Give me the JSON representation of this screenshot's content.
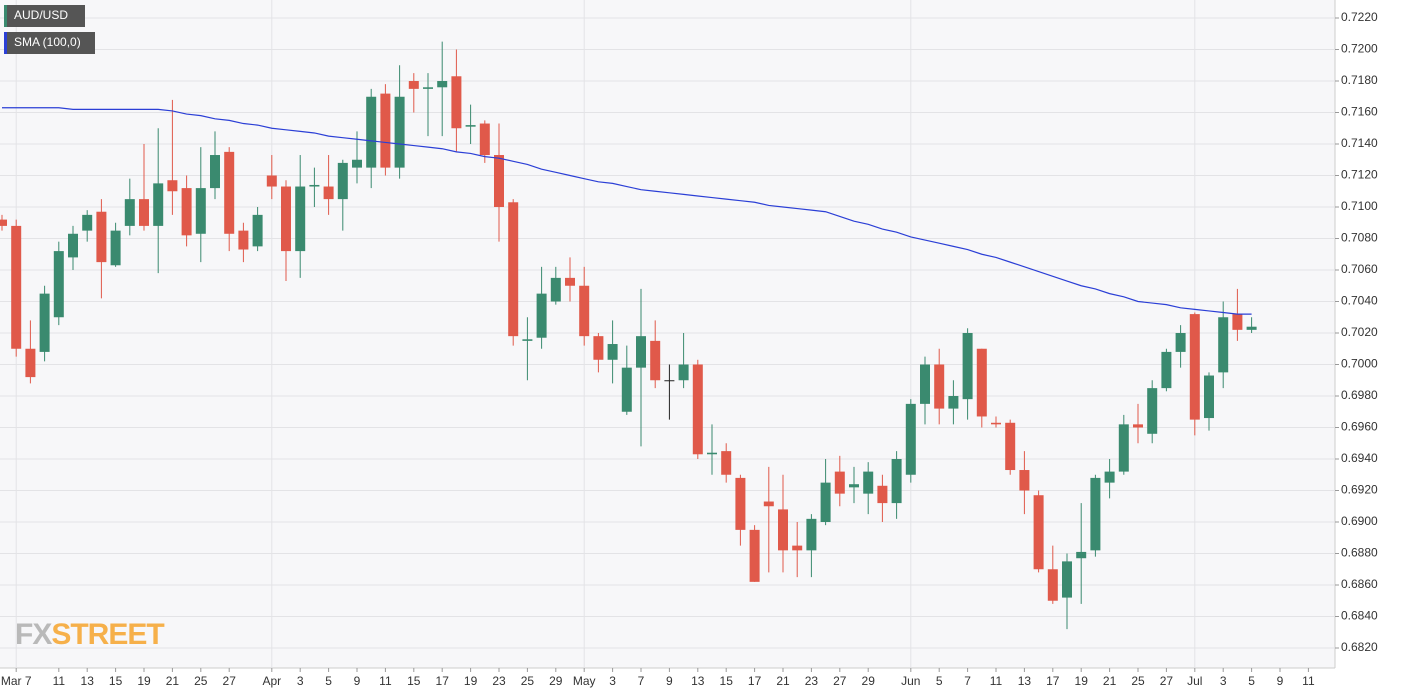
{
  "chart_data": {
    "type": "candlestick",
    "categories": [
      null,
      "Mar 7",
      null,
      null,
      "11",
      null,
      "13",
      null,
      "15",
      null,
      "19",
      null,
      "21",
      null,
      "25",
      null,
      "27",
      null,
      null,
      "Apr",
      null,
      "3",
      null,
      "5",
      null,
      "9",
      null,
      "11",
      null,
      "15",
      null,
      "17",
      null,
      "19",
      null,
      "23",
      null,
      "25",
      null,
      "29",
      null,
      "May",
      null,
      "3",
      null,
      "7",
      null,
      "9",
      null,
      "13",
      null,
      "15",
      null,
      "17",
      null,
      "21",
      null,
      "23",
      null,
      "27",
      null,
      "29",
      null,
      null,
      "Jun",
      null,
      "5",
      null,
      "7",
      null,
      "11",
      null,
      "13",
      null,
      "17",
      null,
      "19",
      null,
      "21",
      null,
      "25",
      null,
      "27",
      null,
      "Jul",
      null,
      "3",
      null,
      "5",
      null,
      "9",
      null,
      "11",
      null
    ],
    "series": [
      {
        "name": "AUD/USD",
        "type": "candlestick",
        "up_color": "#3a8a6f",
        "down_color": "#e0594a",
        "neutral_color": "#222222",
        "open": [
          0.7092,
          0.7088,
          0.701,
          0.7008,
          0.703,
          0.7068,
          0.7085,
          0.7097,
          0.7063,
          0.7088,
          0.7105,
          0.7088,
          0.7117,
          0.7112,
          0.7083,
          0.7112,
          0.7135,
          0.7085,
          0.7075,
          0.712,
          0.7113,
          0.7072,
          0.7113,
          0.7113,
          0.7105,
          0.7125,
          0.7125,
          0.7172,
          0.7125,
          0.718,
          0.7175,
          0.7176,
          0.7183,
          0.7151,
          0.7153,
          0.7133,
          0.7103,
          0.7015,
          0.7017,
          0.704,
          0.7055,
          0.705,
          0.7018,
          0.7003,
          0.697,
          0.6998,
          0.7015,
          0.699,
          0.699,
          0.7,
          0.6943,
          0.6945,
          0.6928,
          0.6895,
          0.6913,
          0.6908,
          0.6885,
          0.6882,
          0.69,
          0.6932,
          0.6922,
          0.6918,
          0.6923,
          0.6912,
          0.693,
          0.6975,
          0.7,
          0.6972,
          0.6978,
          0.701,
          0.6963,
          0.6963,
          0.6933,
          0.6917,
          0.687,
          0.6852,
          0.6877,
          0.6882,
          0.6925,
          0.6932,
          0.6962,
          0.6956,
          0.6985,
          0.7008,
          0.7032,
          0.6966,
          0.6995,
          0.7032,
          0.7022,
          null,
          null,
          null,
          null,
          null
        ],
        "high": [
          0.7095,
          0.7092,
          0.7028,
          0.705,
          0.7078,
          0.7088,
          0.7098,
          0.7105,
          0.709,
          0.7118,
          0.714,
          0.715,
          0.7168,
          0.712,
          0.7138,
          0.7148,
          0.7138,
          0.709,
          0.71,
          0.7133,
          0.7117,
          0.7133,
          0.7125,
          0.7133,
          0.713,
          0.7148,
          0.7175,
          0.7178,
          0.719,
          0.7185,
          0.7185,
          0.7205,
          0.72,
          0.7165,
          0.7155,
          0.7153,
          0.7105,
          0.703,
          0.7062,
          0.7062,
          0.7068,
          0.7062,
          0.702,
          0.7028,
          0.7012,
          0.7048,
          0.7028,
          0.7,
          0.702,
          0.7003,
          0.6962,
          0.695,
          0.693,
          0.6898,
          0.6935,
          0.693,
          0.69,
          0.6905,
          0.694,
          0.6942,
          0.6935,
          0.6938,
          0.693,
          0.6945,
          0.6978,
          0.7005,
          0.701,
          0.699,
          0.7023,
          0.701,
          0.6967,
          0.6965,
          0.6945,
          0.692,
          0.6885,
          0.688,
          0.6912,
          0.693,
          0.694,
          0.6968,
          0.6975,
          0.699,
          0.701,
          0.7025,
          0.7033,
          0.6995,
          0.704,
          0.7048,
          0.703,
          null,
          null,
          null,
          null,
          null
        ],
        "low": [
          0.7085,
          0.7005,
          0.6988,
          0.7002,
          0.7025,
          0.706,
          0.7078,
          0.7042,
          0.7062,
          0.7082,
          0.7085,
          0.7058,
          0.7095,
          0.7075,
          0.7065,
          0.7105,
          0.7072,
          0.7065,
          0.7072,
          0.7105,
          0.7053,
          0.7055,
          0.71,
          0.7095,
          0.7085,
          0.7115,
          0.7112,
          0.712,
          0.7118,
          0.716,
          0.7145,
          0.7145,
          0.7135,
          0.714,
          0.7128,
          0.7078,
          0.7012,
          0.699,
          0.701,
          0.7038,
          0.704,
          0.7012,
          0.6995,
          0.6988,
          0.6968,
          0.6948,
          0.6985,
          0.6965,
          0.6985,
          0.694,
          0.693,
          0.6925,
          0.6885,
          0.6862,
          0.6868,
          0.6868,
          0.6865,
          0.6865,
          0.6898,
          0.691,
          0.6912,
          0.6905,
          0.69,
          0.6902,
          0.6925,
          0.6962,
          0.6962,
          0.6962,
          0.6965,
          0.696,
          0.696,
          0.693,
          0.6905,
          0.6868,
          0.6848,
          0.6832,
          0.6848,
          0.6878,
          0.6915,
          0.693,
          0.695,
          0.695,
          0.6983,
          0.6998,
          0.6955,
          0.6958,
          0.6985,
          0.7015,
          0.702,
          null,
          null,
          null,
          null,
          null
        ],
        "close": [
          0.7088,
          0.701,
          0.6992,
          0.7045,
          0.7072,
          0.7083,
          0.7095,
          0.7065,
          0.7085,
          0.7105,
          0.7088,
          0.7115,
          0.711,
          0.7082,
          0.7112,
          0.7133,
          0.7083,
          0.7073,
          0.7095,
          0.7113,
          0.7072,
          0.7113,
          0.7114,
          0.7105,
          0.7128,
          0.713,
          0.717,
          0.7125,
          0.717,
          0.7175,
          0.7176,
          0.718,
          0.715,
          0.7152,
          0.7133,
          0.71,
          0.7018,
          0.7016,
          0.7045,
          0.7055,
          0.705,
          0.7018,
          0.7003,
          0.7013,
          0.6998,
          0.7018,
          0.699,
          0.699,
          0.7,
          0.6943,
          0.6944,
          0.693,
          0.6895,
          0.6862,
          0.691,
          0.6882,
          0.6882,
          0.6902,
          0.6925,
          0.6918,
          0.6924,
          0.6932,
          0.6912,
          0.694,
          0.6975,
          0.7,
          0.6972,
          0.698,
          0.702,
          0.6967,
          0.6962,
          0.6933,
          0.692,
          0.687,
          0.685,
          0.6875,
          0.6881,
          0.6928,
          0.6932,
          0.6962,
          0.696,
          0.6985,
          0.7008,
          0.702,
          0.6965,
          0.6993,
          0.703,
          0.7022,
          0.7024,
          null,
          null,
          null,
          null,
          null
        ]
      },
      {
        "name": "SMA (100,0)",
        "type": "line",
        "color": "#2b3fd6",
        "values": [
          0.7163,
          0.7163,
          0.7163,
          0.7163,
          0.7163,
          0.7162,
          0.7162,
          0.7162,
          0.7162,
          0.7162,
          0.7162,
          0.7162,
          0.7161,
          0.7159,
          0.7158,
          0.7156,
          0.7155,
          0.7153,
          0.7152,
          0.715,
          0.7149,
          0.7148,
          0.7147,
          0.7145,
          0.7144,
          0.7143,
          0.7142,
          0.7141,
          0.714,
          0.7139,
          0.7138,
          0.7137,
          0.7135,
          0.7134,
          0.7132,
          0.7131,
          0.7129,
          0.7127,
          0.7124,
          0.7122,
          0.712,
          0.7118,
          0.7116,
          0.7115,
          0.7113,
          0.7111,
          0.711,
          0.7109,
          0.7108,
          0.7107,
          0.7106,
          0.7105,
          0.7104,
          0.7103,
          0.7101,
          0.71,
          0.7099,
          0.7098,
          0.7097,
          0.7094,
          0.7091,
          0.7089,
          0.7086,
          0.7084,
          0.7081,
          0.7079,
          0.7077,
          0.7075,
          0.7073,
          0.707,
          0.7068,
          0.7065,
          0.7062,
          0.7059,
          0.7056,
          0.7053,
          0.705,
          0.7048,
          0.7045,
          0.7043,
          0.704,
          0.7039,
          0.7038,
          0.7036,
          0.7035,
          0.7034,
          0.7033,
          0.7032,
          0.7032,
          null,
          null,
          null,
          null,
          null
        ]
      }
    ],
    "ylim": [
      0.682,
      0.722
    ],
    "yticks": [
      {
        "value": 0.682,
        "label": "0.6820"
      },
      {
        "value": 0.684,
        "label": "0.6840"
      },
      {
        "value": 0.686,
        "label": "0.6860"
      },
      {
        "value": 0.688,
        "label": "0.6880"
      },
      {
        "value": 0.69,
        "label": "0.6900"
      },
      {
        "value": 0.692,
        "label": "0.6920"
      },
      {
        "value": 0.694,
        "label": "0.6940"
      },
      {
        "value": 0.696,
        "label": "0.6960"
      },
      {
        "value": 0.698,
        "label": "0.6980"
      },
      {
        "value": 0.7,
        "label": "0.7000"
      },
      {
        "value": 0.702,
        "label": "0.7020"
      },
      {
        "value": 0.704,
        "label": "0.7040"
      },
      {
        "value": 0.706,
        "label": "0.7060"
      },
      {
        "value": 0.708,
        "label": "0.7080"
      },
      {
        "value": 0.71,
        "label": "0.7100"
      },
      {
        "value": 0.712,
        "label": "0.7120"
      },
      {
        "value": 0.714,
        "label": "0.7140"
      },
      {
        "value": 0.716,
        "label": "0.7160"
      },
      {
        "value": 0.718,
        "label": "0.7180"
      },
      {
        "value": 0.72,
        "label": "0.7200"
      },
      {
        "value": 0.722,
        "label": "0.7220"
      }
    ],
    "grid": true,
    "watermark": {
      "left": "FX",
      "right": "STREET"
    }
  }
}
